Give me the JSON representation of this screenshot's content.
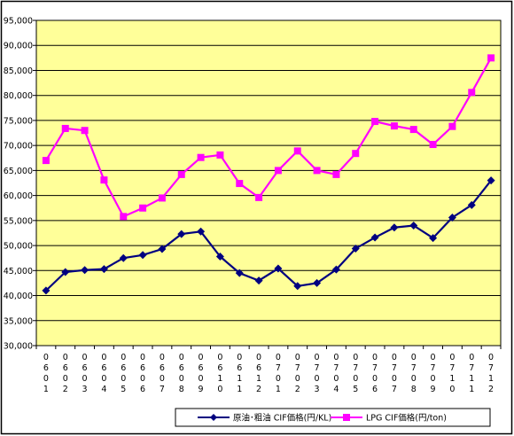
{
  "chart_data": {
    "type": "line",
    "title": "",
    "xlabel": "",
    "ylabel": "",
    "ylim": [
      30000,
      95000
    ],
    "ytick_step": 5000,
    "grid": "horizontal",
    "legend_position": "bottom",
    "colors": {
      "plot_background": "#ffff99",
      "gridline": "#000000",
      "border": "#000000"
    },
    "categories": [
      "0601",
      "0602",
      "0603",
      "0604",
      "0605",
      "0606",
      "0607",
      "0608",
      "0609",
      "0610",
      "0611",
      "0612",
      "0701",
      "0702",
      "0703",
      "0704",
      "0705",
      "0706",
      "0707",
      "0708",
      "0709",
      "0710",
      "0711",
      "0712"
    ],
    "yticks": [
      "30,000",
      "35,000",
      "40,000",
      "45,000",
      "50,000",
      "55,000",
      "60,000",
      "65,000",
      "70,000",
      "75,000",
      "80,000",
      "85,000",
      "90,000",
      "95,000"
    ],
    "series": [
      {
        "name": "原油･粗油 CIF価格(円/KL)",
        "color": "#000080",
        "marker": "diamond",
        "values": [
          41000,
          44700,
          45100,
          45300,
          47500,
          48100,
          49300,
          52300,
          52800,
          47800,
          44500,
          43000,
          45400,
          41900,
          42500,
          45200,
          49400,
          51600,
          53600,
          54000,
          51500,
          55600,
          58100,
          63000
        ]
      },
      {
        "name": "LPG CIF価格(円/ton)",
        "color": "#ff00ff",
        "marker": "square",
        "values": [
          67000,
          73400,
          73000,
          63100,
          55800,
          57500,
          59500,
          64200,
          67600,
          68100,
          62400,
          59600,
          65000,
          68900,
          65000,
          64200,
          68400,
          74800,
          73900,
          73200,
          70200,
          73800,
          80600,
          87500
        ]
      }
    ]
  }
}
